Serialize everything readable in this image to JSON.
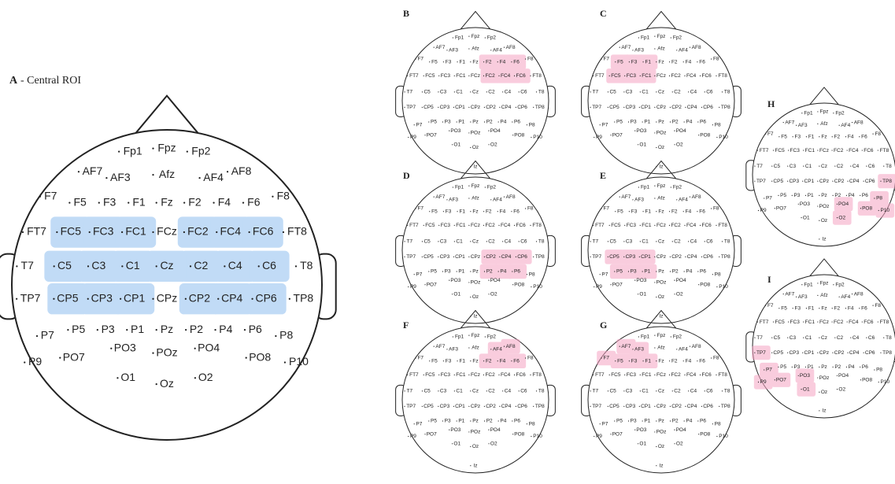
{
  "panels": [
    {
      "label": "A",
      "title": "- Central ROI"
    },
    {
      "label": "B"
    },
    {
      "label": "C"
    },
    {
      "label": "D"
    },
    {
      "label": "E"
    },
    {
      "label": "F"
    },
    {
      "label": "G"
    },
    {
      "label": "H"
    },
    {
      "label": "I"
    }
  ],
  "electrodes": [
    "Fp1",
    "Fpz",
    "Fp2",
    "AF7",
    "AF3",
    "Afz",
    "AF4",
    "AF8",
    "F7",
    "F5",
    "F3",
    "F1",
    "Fz",
    "F2",
    "F4",
    "F6",
    "F8",
    "FT7",
    "FC5",
    "FC3",
    "FC1",
    "FCz",
    "FC2",
    "FC4",
    "FC6",
    "FT8",
    "T7",
    "C5",
    "C3",
    "C1",
    "Cz",
    "C2",
    "C4",
    "C6",
    "T8",
    "TP7",
    "CP5",
    "CP3",
    "CP1",
    "CPz",
    "CP2",
    "CP4",
    "CP6",
    "TP8",
    "P7",
    "P5",
    "P3",
    "P1",
    "Pz",
    "P2",
    "P4",
    "P6",
    "P8",
    "P9",
    "PO7",
    "PO3",
    "POz",
    "PO4",
    "PO8",
    "P10",
    "O1",
    "Oz",
    "O2",
    "Iz"
  ]
}
